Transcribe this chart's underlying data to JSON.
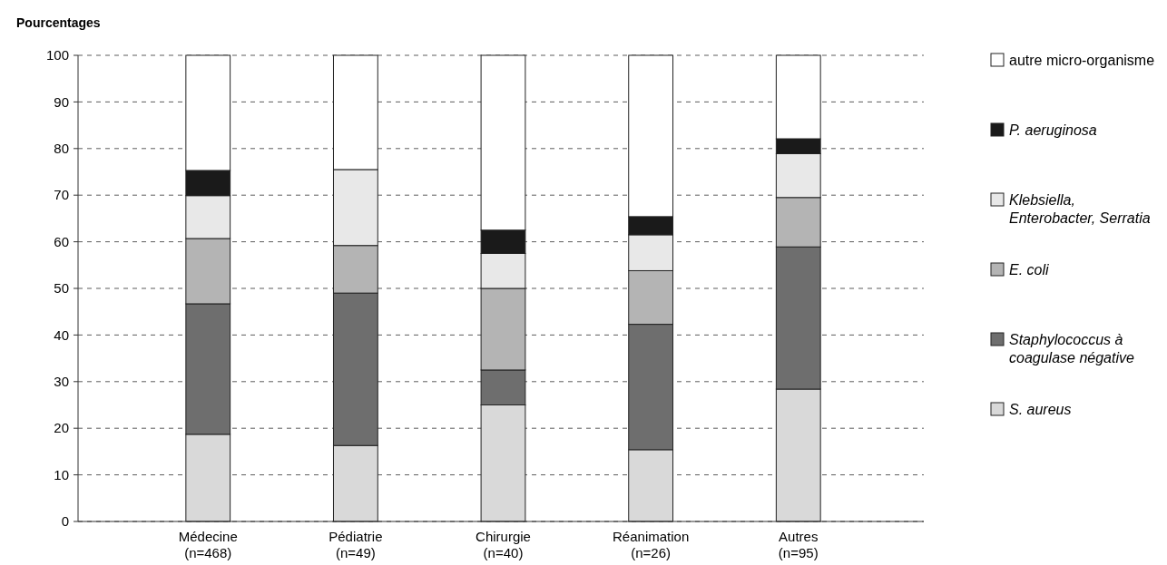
{
  "chart_data": {
    "type": "bar",
    "stacked": true,
    "ylabel": "Pourcentages",
    "categories": [
      "Médecine (n=468)",
      "Pédiatrie (n=49)",
      "Chirurgie (n=40)",
      "Réanimation (n=26)",
      "Autres (n=95)"
    ],
    "series": [
      {
        "name": "S. aureus",
        "color": "#d9d9d9",
        "values": [
          18.7,
          16.3,
          25,
          15.4,
          28.4
        ]
      },
      {
        "name": "Staphylococcus à coagulase négative",
        "color": "#6e6e6e",
        "values": [
          28,
          32.7,
          7.5,
          26.9,
          30.5
        ]
      },
      {
        "name": "E. coli",
        "color": "#b4b4b4",
        "values": [
          14,
          10.2,
          17.5,
          11.5,
          10.6
        ]
      },
      {
        "name": "Klebsiella, Enterobacter, Serratia",
        "color": "#e8e8e8",
        "values": [
          9.2,
          16.3,
          7.5,
          7.7,
          9.4
        ]
      },
      {
        "name": "P. aeruginosa",
        "color": "#1a1a1a",
        "values": [
          5.4,
          0,
          5,
          3.9,
          3.2
        ]
      },
      {
        "name": "autre micro-organisme",
        "color": "#ffffff",
        "values": [
          24.7,
          24.5,
          37.5,
          34.6,
          17.9
        ]
      }
    ],
    "ylim": [
      0,
      100
    ],
    "yticks": [
      0,
      10,
      20,
      30,
      40,
      50,
      60,
      70,
      80,
      90,
      100
    ],
    "grid": "y",
    "legend": "right"
  }
}
